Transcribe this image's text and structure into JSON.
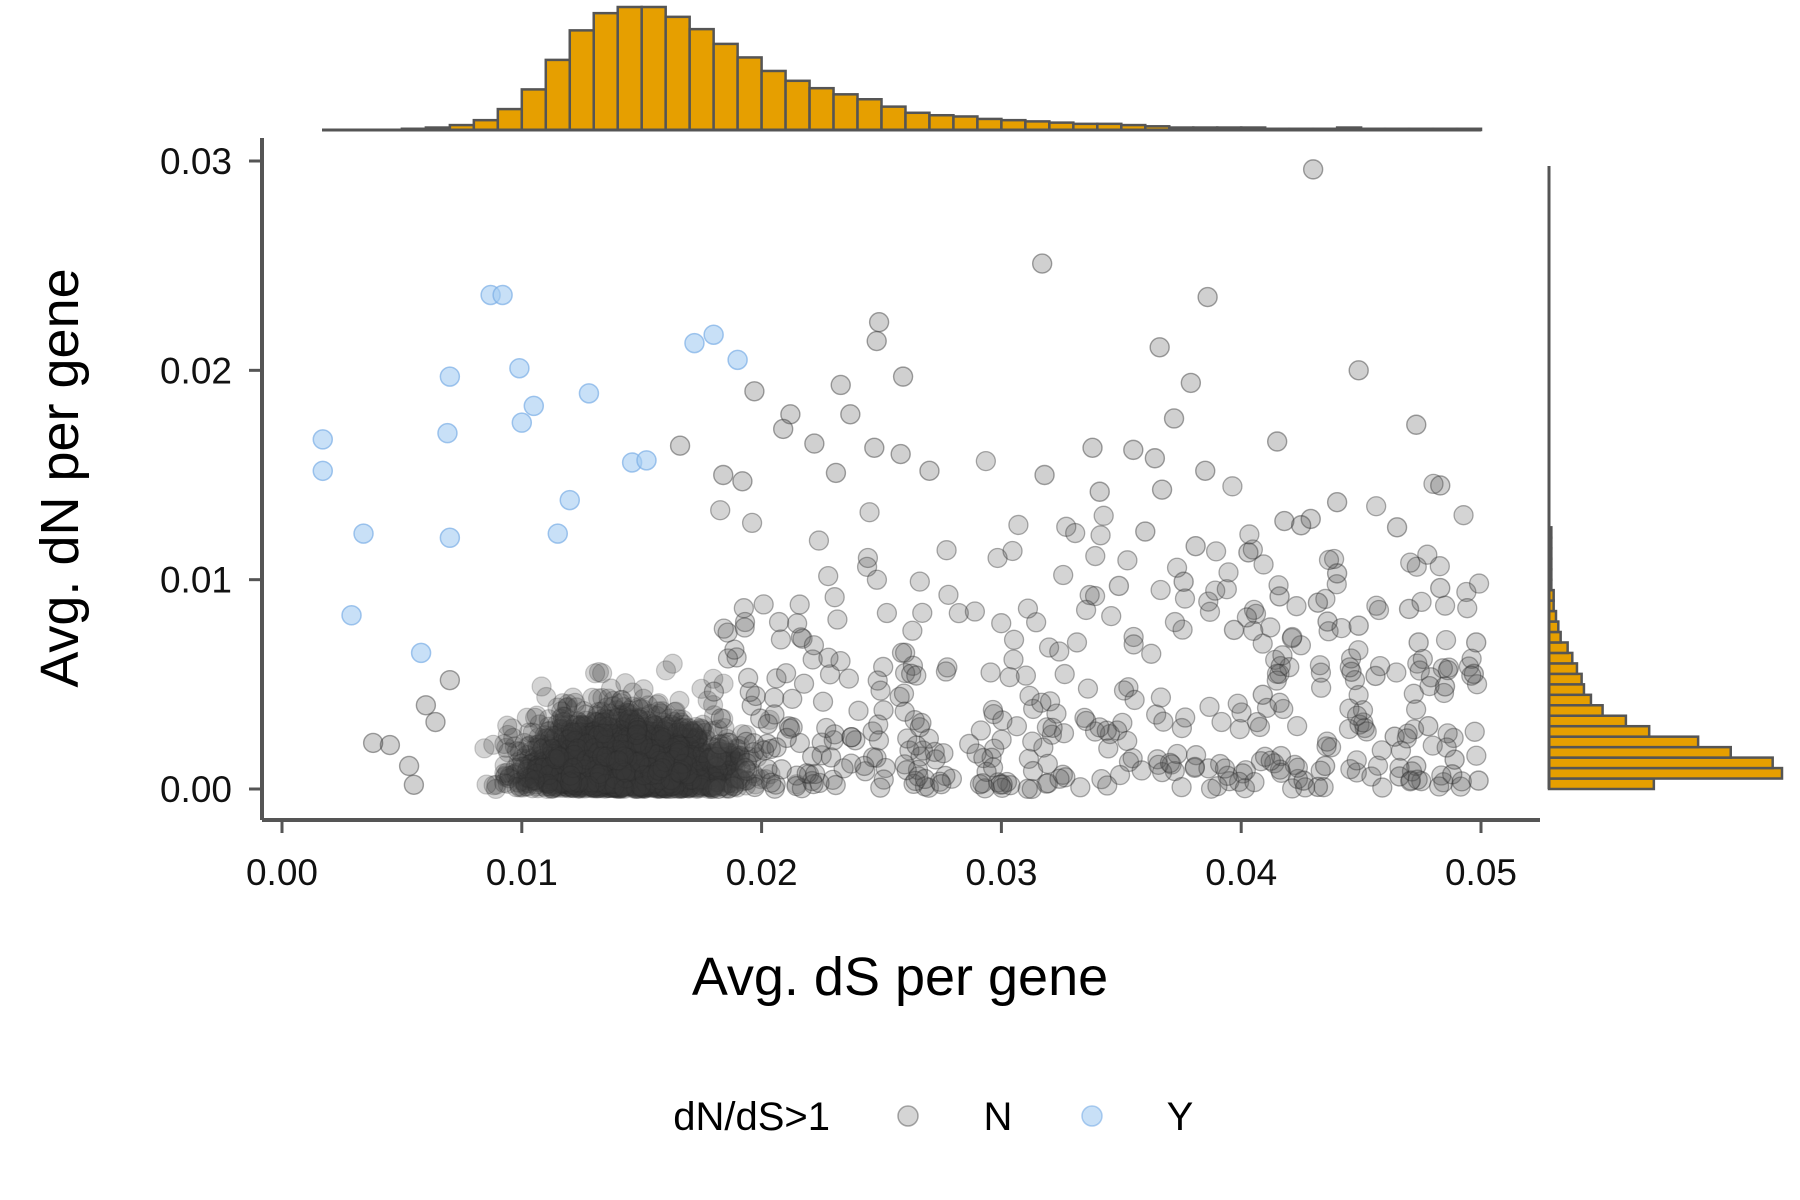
{
  "chart_data": {
    "type": "scatter",
    "title": "",
    "xlabel": "Avg. dS per gene",
    "ylabel": "Avg. dN per gene",
    "xlim": [
      0.0,
      0.05
    ],
    "ylim": [
      0.0,
      0.03
    ],
    "x_ticks": [
      "0.00",
      "0.01",
      "0.02",
      "0.03",
      "0.04",
      "0.05"
    ],
    "y_ticks": [
      "0.00",
      "0.01",
      "0.02",
      "0.03"
    ],
    "grid": false,
    "legend": {
      "title": "dN/dS>1",
      "placement": "bottom",
      "entries": [
        {
          "label": "N",
          "color": "#888888"
        },
        {
          "label": "Y",
          "color": "#a3cbf2"
        }
      ]
    },
    "series": [
      {
        "name": "N",
        "color": "#3a3a3a",
        "points_highlighted": [
          [
            0.043,
            0.0296
          ],
          [
            0.0317,
            0.0251
          ],
          [
            0.0386,
            0.0235
          ],
          [
            0.0249,
            0.0223
          ],
          [
            0.0248,
            0.0214
          ],
          [
            0.0366,
            0.0211
          ],
          [
            0.0449,
            0.02
          ],
          [
            0.0259,
            0.0197
          ],
          [
            0.0379,
            0.0194
          ],
          [
            0.0233,
            0.0193
          ],
          [
            0.0197,
            0.019
          ],
          [
            0.0212,
            0.0179
          ],
          [
            0.0237,
            0.0179
          ],
          [
            0.0209,
            0.0172
          ],
          [
            0.0222,
            0.0165
          ],
          [
            0.0415,
            0.0166
          ],
          [
            0.0473,
            0.0174
          ],
          [
            0.0372,
            0.0177
          ],
          [
            0.0166,
            0.0164
          ],
          [
            0.0247,
            0.0163
          ],
          [
            0.0258,
            0.016
          ],
          [
            0.0318,
            0.015
          ],
          [
            0.0385,
            0.0152
          ],
          [
            0.0338,
            0.0163
          ],
          [
            0.0355,
            0.0162
          ],
          [
            0.0364,
            0.0158
          ],
          [
            0.027,
            0.0152
          ],
          [
            0.0231,
            0.0151
          ],
          [
            0.0184,
            0.015
          ],
          [
            0.0192,
            0.0147
          ],
          [
            0.044,
            0.0137
          ],
          [
            0.0483,
            0.0145
          ],
          [
            0.0341,
            0.0142
          ],
          [
            0.0367,
            0.0143
          ],
          [
            0.0418,
            0.0128
          ],
          [
            0.0429,
            0.0129
          ],
          [
            0.0465,
            0.0125
          ],
          [
            0.0425,
            0.0126
          ],
          [
            0.036,
            0.0123
          ],
          [
            0.044,
            0.0103
          ],
          [
            0.0381,
            0.0116
          ],
          [
            0.0403,
            0.0113
          ],
          [
            0.0376,
            0.0099
          ],
          [
            0.0349,
            0.0097
          ],
          [
            0.0416,
            0.0092
          ],
          [
            0.0483,
            0.0096
          ],
          [
            0.047,
            0.0086
          ],
          [
            0.0432,
            0.0089
          ],
          [
            0.0397,
            0.0076
          ],
          [
            0.0436,
            0.008
          ],
          [
            0.0449,
            0.0078
          ],
          [
            0.0474,
            0.007
          ],
          [
            0.0498,
            0.007
          ],
          [
            0.0456,
            0.0054
          ],
          [
            0.0497,
            0.0055
          ],
          [
            0.0485,
            0.0049
          ],
          [
            0.0409,
            0.0045
          ],
          [
            0.0446,
            0.0056
          ],
          [
            0.0478,
            0.003
          ],
          [
            0.0464,
            0.0025
          ],
          [
            0.0489,
            0.0014
          ],
          [
            0.0473,
            0.0011
          ],
          [
            0.0466,
            0.0006
          ],
          [
            0.0488,
            0.0007
          ],
          [
            0.0499,
            0.0004
          ],
          [
            0.0426,
            0.0004
          ],
          [
            0.0432,
            0.0001
          ],
          [
            0.0435,
            0.0011
          ],
          [
            0.0053,
            0.0011
          ],
          [
            0.0045,
            0.0021
          ],
          [
            0.0038,
            0.0022
          ],
          [
            0.006,
            0.004
          ],
          [
            0.007,
            0.0052
          ],
          [
            0.0064,
            0.0032
          ],
          [
            0.0055,
            0.0002
          ]
        ],
        "dense_core": {
          "description": "thousands of overlapping points",
          "x_range": [
            0.005,
            0.026
          ],
          "y_range": [
            0.0,
            0.011
          ]
        }
      },
      {
        "name": "Y",
        "color": "#8fbcec",
        "points": [
          [
            0.0017,
            0.0167
          ],
          [
            0.0017,
            0.0152
          ],
          [
            0.0034,
            0.0122
          ],
          [
            0.0029,
            0.0083
          ],
          [
            0.0058,
            0.0065
          ],
          [
            0.007,
            0.012
          ],
          [
            0.0069,
            0.017
          ],
          [
            0.007,
            0.0197
          ],
          [
            0.0087,
            0.0236
          ],
          [
            0.0092,
            0.0236
          ],
          [
            0.0099,
            0.0201
          ],
          [
            0.01,
            0.0175
          ],
          [
            0.0105,
            0.0183
          ],
          [
            0.0128,
            0.0189
          ],
          [
            0.0115,
            0.0122
          ],
          [
            0.012,
            0.0138
          ],
          [
            0.0146,
            0.0156
          ],
          [
            0.0152,
            0.0157
          ],
          [
            0.0172,
            0.0213
          ],
          [
            0.018,
            0.0217
          ],
          [
            0.019,
            0.0205
          ]
        ]
      }
    ],
    "marginal_x_histogram": {
      "color": "#e69f00",
      "bin_width": 0.001,
      "bin_start": 0.0,
      "counts": [
        0,
        0,
        0,
        0,
        0,
        1,
        2,
        4,
        8,
        17,
        33,
        57,
        81,
        95,
        100,
        100,
        92,
        82,
        70,
        59,
        48,
        40,
        34,
        29,
        25,
        19,
        14,
        12,
        11,
        9,
        8,
        7,
        6,
        5,
        5,
        4,
        3,
        2,
        2,
        2,
        2,
        1,
        1,
        1,
        2,
        1,
        1,
        1,
        1,
        1
      ]
    },
    "marginal_y_histogram": {
      "color": "#e69f00",
      "bin_width": 0.0005,
      "bin_start": 0.0,
      "counts": [
        45,
        100,
        96,
        78,
        64,
        43,
        33,
        23,
        18,
        15,
        14,
        12,
        10,
        8,
        5,
        4,
        3,
        2,
        2,
        1,
        1,
        1,
        1,
        1,
        1,
        0,
        0,
        0,
        0,
        0,
        0,
        0,
        0,
        0,
        0,
        0,
        0,
        0,
        0,
        0,
        0,
        0,
        0,
        0,
        0,
        0,
        0,
        0,
        0,
        0,
        0,
        0,
        0,
        0,
        0,
        0,
        0,
        0,
        0,
        0,
        0
      ]
    }
  }
}
